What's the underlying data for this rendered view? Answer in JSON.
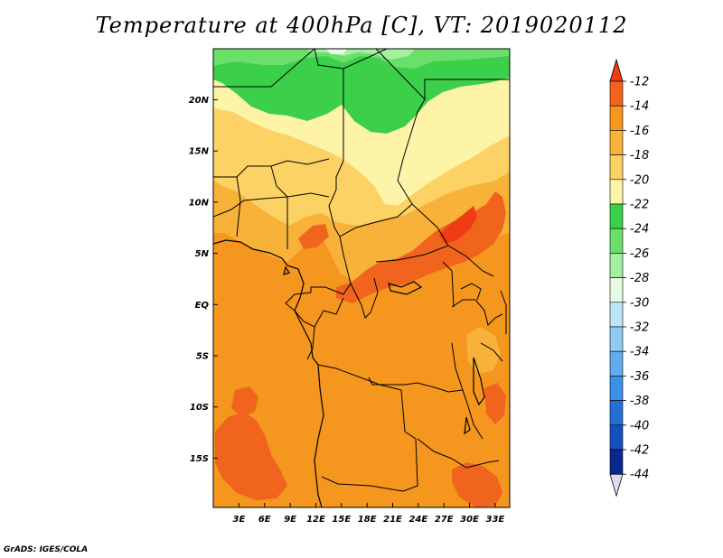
{
  "title": "Temperature at 400hPa [C], VT: 2019020112",
  "footer": "GrADS: IGES/COLA",
  "map": {
    "lon_labels": [
      "3E",
      "6E",
      "9E",
      "12E",
      "15E",
      "18E",
      "21E",
      "24E",
      "27E",
      "30E",
      "33E"
    ],
    "lat_labels": [
      "20N",
      "15N",
      "10N",
      "5N",
      "EQ",
      "5S",
      "10S",
      "15S"
    ]
  },
  "colorbar": {
    "labels": [
      "-12",
      "-14",
      "-16",
      "-18",
      "-20",
      "-22",
      "-24",
      "-26",
      "-28",
      "-30",
      "-32",
      "-34",
      "-36",
      "-38",
      "-40",
      "-42",
      "-44"
    ],
    "colors": {
      "top_arrow": "#f03c14",
      "bins": [
        "#f0641e",
        "#f5961e",
        "#f8b23a",
        "#fcd264",
        "#fef4a8",
        "#3ccf4a",
        "#6ae06a",
        "#a4f0a0",
        "#e6fce6",
        "#bde4f8",
        "#8ecaf2",
        "#60acec",
        "#3c90e6",
        "#2270d4",
        "#1450be",
        "#0a2890"
      ],
      "bottom_arrow": "#dadcf6"
    }
  }
}
